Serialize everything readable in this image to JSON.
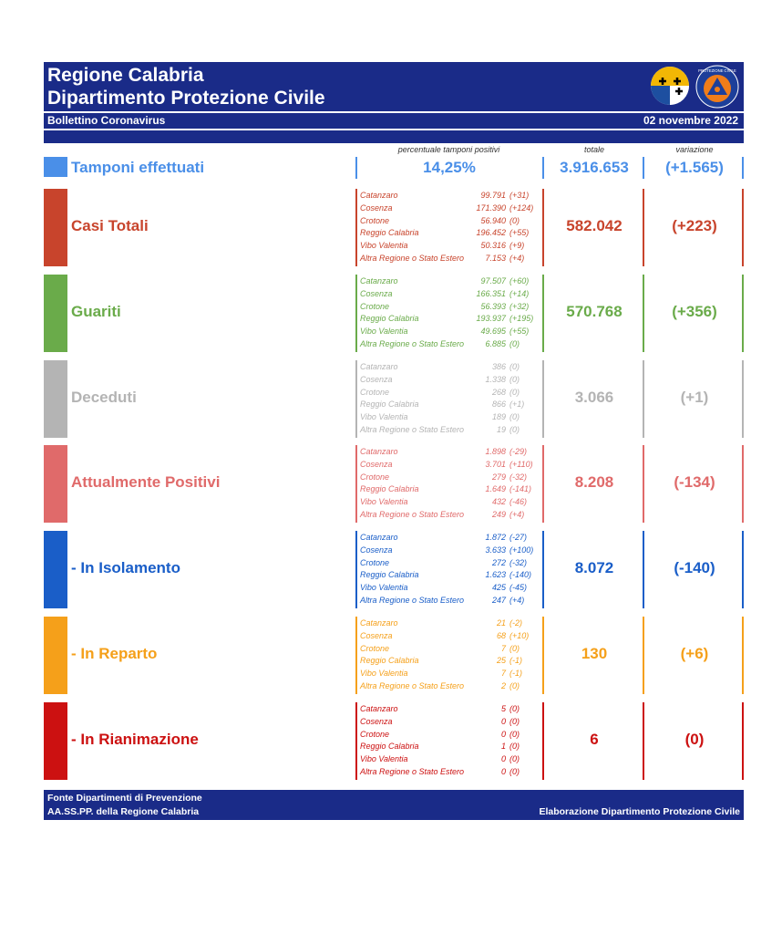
{
  "header": {
    "title_line1": "Regione Calabria",
    "title_line2": "Dipartimento Protezione Civile",
    "bulletin": "Bollettino Coronavirus",
    "date": "02 novembre 2022",
    "logo_text": "PROTEZIONE CIVILE"
  },
  "columns": {
    "pct_label": "percentuale tamponi positivi",
    "total_label": "totale",
    "variation_label": "variazione"
  },
  "tamponi": {
    "label": "Tamponi effettuati",
    "pct": "14,25%",
    "total": "3.916.653",
    "variation": "(+1.565)",
    "color": "#4a8fe8"
  },
  "sections": [
    {
      "label": "Casi Totali",
      "color": "#c8442c",
      "total": "582.042",
      "variation": "(+223)",
      "provinces": [
        {
          "name": "Catanzaro",
          "value": "99.791",
          "delta": "(+31)"
        },
        {
          "name": "Cosenza",
          "value": "171.390",
          "delta": "(+124)"
        },
        {
          "name": "Crotone",
          "value": "56.940",
          "delta": "(0)"
        },
        {
          "name": "Reggio Calabria",
          "value": "196.452",
          "delta": "(+55)"
        },
        {
          "name": "Vibo Valentia",
          "value": "50.316",
          "delta": "(+9)"
        },
        {
          "name": "Altra Regione o Stato Estero",
          "value": "7.153",
          "delta": "(+4)"
        }
      ]
    },
    {
      "label": "Guariti",
      "color": "#6aab4a",
      "total": "570.768",
      "variation": "(+356)",
      "provinces": [
        {
          "name": "Catanzaro",
          "value": "97.507",
          "delta": "(+60)"
        },
        {
          "name": "Cosenza",
          "value": "166.351",
          "delta": "(+14)"
        },
        {
          "name": "Crotone",
          "value": "56.393",
          "delta": "(+32)"
        },
        {
          "name": "Reggio Calabria",
          "value": "193.937",
          "delta": "(+195)"
        },
        {
          "name": "Vibo Valentia",
          "value": "49.695",
          "delta": "(+55)"
        },
        {
          "name": "Altra Regione o Stato Estero",
          "value": "6.885",
          "delta": "(0)"
        }
      ]
    },
    {
      "label": "Deceduti",
      "color": "#b4b4b4",
      "total": "3.066",
      "variation": "(+1)",
      "provinces": [
        {
          "name": "Catanzaro",
          "value": "386",
          "delta": "(0)"
        },
        {
          "name": "Cosenza",
          "value": "1.338",
          "delta": "(0)"
        },
        {
          "name": "Crotone",
          "value": "268",
          "delta": "(0)"
        },
        {
          "name": "Reggio Calabria",
          "value": "866",
          "delta": "(+1)"
        },
        {
          "name": "Vibo Valentia",
          "value": "189",
          "delta": "(0)"
        },
        {
          "name": "Altra Regione o Stato Estero",
          "value": "19",
          "delta": "(0)"
        }
      ]
    },
    {
      "label": "Attualmente Positivi",
      "color": "#e06a6a",
      "total": "8.208",
      "variation": "(-134)",
      "provinces": [
        {
          "name": "Catanzaro",
          "value": "1.898",
          "delta": "(-29)"
        },
        {
          "name": "Cosenza",
          "value": "3.701",
          "delta": "(+110)"
        },
        {
          "name": "Crotone",
          "value": "279",
          "delta": "(-32)"
        },
        {
          "name": "Reggio Calabria",
          "value": "1.649",
          "delta": "(-141)"
        },
        {
          "name": "Vibo Valentia",
          "value": "432",
          "delta": "(-46)"
        },
        {
          "name": "Altra Regione o Stato Estero",
          "value": "249",
          "delta": "(+4)"
        }
      ]
    },
    {
      "label": "- In Isolamento",
      "color": "#1a5ec8",
      "total": "8.072",
      "variation": "(-140)",
      "provinces": [
        {
          "name": "Catanzaro",
          "value": "1.872",
          "delta": "(-27)"
        },
        {
          "name": "Cosenza",
          "value": "3.633",
          "delta": "(+100)"
        },
        {
          "name": "Crotone",
          "value": "272",
          "delta": "(-32)"
        },
        {
          "name": "Reggio Calabria",
          "value": "1.623",
          "delta": "(-140)"
        },
        {
          "name": "Vibo Valentia",
          "value": "425",
          "delta": "(-45)"
        },
        {
          "name": "Altra Regione o Stato Estero",
          "value": "247",
          "delta": "(+4)"
        }
      ]
    },
    {
      "label": "- In Reparto",
      "color": "#f5a01a",
      "total": "130",
      "variation": "(+6)",
      "provinces": [
        {
          "name": "Catanzaro",
          "value": "21",
          "delta": "(-2)"
        },
        {
          "name": "Cosenza",
          "value": "68",
          "delta": "(+10)"
        },
        {
          "name": "Crotone",
          "value": "7",
          "delta": "(0)"
        },
        {
          "name": "Reggio Calabria",
          "value": "25",
          "delta": "(-1)"
        },
        {
          "name": "Vibo Valentia",
          "value": "7",
          "delta": "(-1)"
        },
        {
          "name": "Altra Regione o Stato Estero",
          "value": "2",
          "delta": "(0)"
        }
      ]
    },
    {
      "label": "- In Rianimazione",
      "color": "#cc1111",
      "total": "6",
      "variation": "(0)",
      "provinces": [
        {
          "name": "Catanzaro",
          "value": "5",
          "delta": "(0)"
        },
        {
          "name": "Cosenza",
          "value": "0",
          "delta": "(0)"
        },
        {
          "name": "Crotone",
          "value": "0",
          "delta": "(0)"
        },
        {
          "name": "Reggio Calabria",
          "value": "1",
          "delta": "(0)"
        },
        {
          "name": "Vibo Valentia",
          "value": "0",
          "delta": "(0)"
        },
        {
          "name": "Altra Regione o Stato Estero",
          "value": "0",
          "delta": "(0)"
        }
      ]
    }
  ],
  "footer": {
    "line1": "Fonte Dipartimenti di Prevenzione",
    "line2": "AA.SS.PP.  della Regione Calabria",
    "right": "Elaborazione Dipartimento Protezione Civile"
  }
}
